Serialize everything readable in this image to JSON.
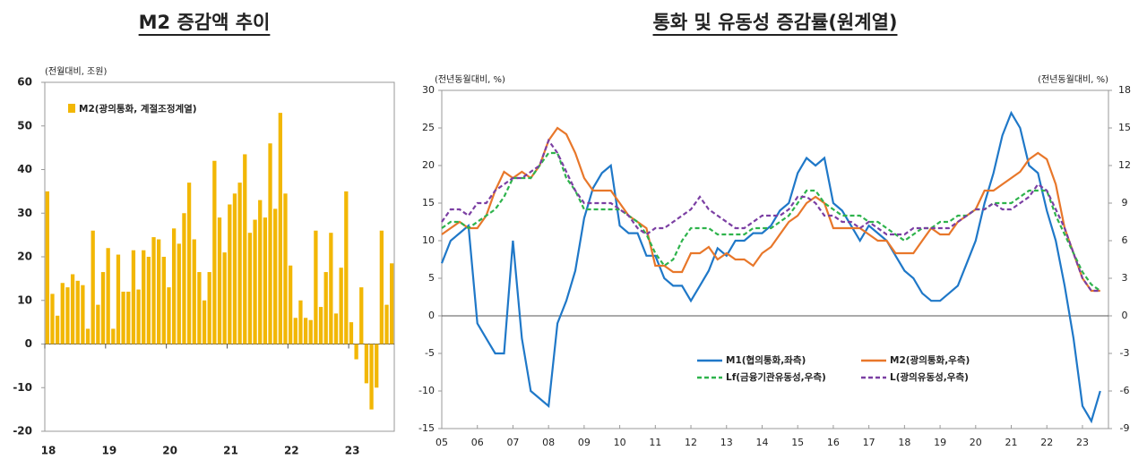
{
  "chart_data": [
    {
      "type": "bar",
      "title": "M2 증감액 추이",
      "unit_label": "(전월대비, 조원)",
      "categories": [
        "18",
        null,
        null,
        null,
        null,
        null,
        null,
        null,
        null,
        null,
        null,
        null,
        "19",
        null,
        null,
        null,
        null,
        null,
        null,
        null,
        null,
        null,
        null,
        null,
        "20",
        null,
        null,
        null,
        null,
        null,
        null,
        null,
        null,
        null,
        null,
        null,
        "21",
        null,
        null,
        null,
        null,
        null,
        null,
        null,
        null,
        null,
        null,
        null,
        "22",
        null,
        null,
        null,
        null,
        null,
        null,
        null,
        null,
        null,
        null,
        null,
        "23",
        null,
        null,
        null,
        null,
        null,
        null,
        null,
        null
      ],
      "series": [
        {
          "name": "M2(광의통화, 계절조정계열)",
          "color": "#f2b705",
          "values": [
            35,
            11.5,
            6.5,
            14,
            13,
            16,
            14.5,
            13.5,
            3.5,
            26,
            9,
            16.5,
            22,
            3.5,
            20.5,
            12,
            12,
            21.5,
            12.5,
            21.5,
            20,
            24.5,
            24,
            20,
            13,
            26.5,
            23,
            30,
            37,
            24,
            16.5,
            10,
            16.5,
            42,
            29,
            21,
            32,
            34.5,
            37,
            43.5,
            25.5,
            28.5,
            33,
            29,
            46,
            31,
            53,
            34.5,
            18,
            6,
            10,
            6,
            5.5,
            26,
            8.5,
            16.5,
            25.5,
            7,
            17.5,
            35,
            5,
            -3.5,
            13,
            -9,
            -15,
            -10,
            26,
            9,
            18.5
          ]
        }
      ],
      "ylim": [
        -20,
        60
      ],
      "yticks": [
        -20,
        -10,
        0,
        10,
        20,
        30,
        40,
        50,
        60
      ]
    },
    {
      "type": "line",
      "title": "통화 및 유동성 증감률(원계열)",
      "unit_label": "(전년동월대비, %)",
      "unit_label_right": "(전년동월대비, %)",
      "categories": [
        "05",
        null,
        null,
        null,
        "06",
        null,
        null,
        null,
        "07",
        null,
        null,
        null,
        "08",
        null,
        null,
        null,
        "09",
        null,
        null,
        null,
        "10",
        null,
        null,
        null,
        "11",
        null,
        null,
        null,
        "12",
        null,
        null,
        null,
        "13",
        null,
        null,
        null,
        "14",
        null,
        null,
        null,
        "15",
        null,
        null,
        null,
        "16",
        null,
        null,
        null,
        "17",
        null,
        null,
        null,
        "18",
        null,
        null,
        null,
        "19",
        null,
        null,
        null,
        "20",
        null,
        null,
        null,
        "21",
        null,
        null,
        null,
        "22",
        null,
        null,
        null,
        "23",
        null,
        null
      ],
      "series": [
        {
          "name": "M1(협의통화,좌측)",
          "color": "#1f78c8",
          "dash": false,
          "values": [
            7,
            10,
            11,
            12,
            -1,
            -3,
            -5,
            -5,
            10,
            -3,
            -10,
            -11,
            -12,
            -1,
            2,
            6,
            13,
            17,
            19,
            20,
            12,
            11,
            11,
            8,
            8,
            5,
            4,
            4,
            2,
            4,
            6,
            9,
            8,
            10,
            10,
            11,
            11,
            12,
            14,
            15,
            19,
            21,
            20,
            21,
            15,
            14,
            12,
            10,
            12,
            11,
            10,
            8,
            6,
            5,
            3,
            2,
            2,
            3,
            4,
            7,
            10,
            15,
            19,
            24,
            27,
            25,
            20,
            19,
            14,
            10,
            4,
            -3,
            -12,
            -14,
            -10
          ]
        },
        {
          "name": "M2(광의통화,우측)",
          "color": "#e8772a",
          "dash": false,
          "axis": "y2",
          "values": [
            6.5,
            7,
            7.5,
            7,
            7,
            8,
            10,
            11.5,
            11,
            11.5,
            11,
            12,
            14,
            15,
            14.5,
            13,
            11,
            10,
            10,
            10,
            9,
            8,
            7.5,
            7,
            4,
            4,
            3.5,
            3.5,
            5,
            5,
            5.5,
            4.5,
            5,
            4.5,
            4.5,
            4,
            5,
            5.5,
            6.5,
            7.5,
            8,
            9,
            9.5,
            9,
            7,
            7,
            7,
            7,
            6.5,
            6,
            6,
            5,
            5,
            5,
            6,
            7,
            6.5,
            6.5,
            7.5,
            8,
            8.5,
            10,
            10,
            10.5,
            11,
            11.5,
            12.5,
            13,
            12.5,
            10.5,
            7,
            5,
            3,
            2,
            2
          ]
        },
        {
          "name": "Lf(금융기관유동성,우측)",
          "color": "#2eb34c",
          "dash": true,
          "axis": "y2",
          "values": [
            7,
            7.5,
            7.5,
            7,
            7.5,
            8,
            8.5,
            9.5,
            11,
            11,
            11,
            12,
            13,
            13,
            11,
            10,
            8.5,
            8.5,
            8.5,
            8.5,
            8.5,
            8,
            7.5,
            6.5,
            5,
            4,
            4.5,
            6,
            7,
            7,
            7,
            6.5,
            6.5,
            6.5,
            6.5,
            7,
            7,
            7,
            7.5,
            8,
            9,
            10,
            10,
            9,
            8.5,
            8,
            8,
            8,
            7.5,
            7.5,
            7,
            6.5,
            6,
            6.5,
            7,
            7,
            7.5,
            7.5,
            8,
            8,
            8.5,
            8.5,
            9,
            9,
            9,
            9.5,
            10,
            10,
            10,
            8,
            6.5,
            5,
            3.5,
            2.5,
            2
          ]
        },
        {
          "name": "L(광의유동성,우측)",
          "color": "#7b3fa3",
          "dash": true,
          "axis": "y2",
          "values": [
            7.5,
            8.5,
            8.5,
            8,
            9,
            9,
            10,
            10.5,
            11,
            11,
            11.5,
            12,
            14,
            13,
            11.5,
            10,
            9,
            9,
            9,
            9,
            8.5,
            8,
            7,
            6.5,
            7,
            7,
            7.5,
            8,
            8.5,
            9.5,
            8.5,
            8,
            7.5,
            7,
            7,
            7.5,
            8,
            8,
            8,
            8.5,
            9.5,
            9.5,
            9,
            8,
            8,
            7.5,
            7.5,
            7,
            7.5,
            7,
            6.5,
            6.5,
            6.5,
            7,
            7,
            7,
            7,
            7,
            7.5,
            8,
            8.5,
            8.5,
            9,
            8.5,
            8.5,
            9,
            9.5,
            10.5,
            10,
            8.5,
            7,
            5,
            3,
            2,
            2
          ]
        }
      ],
      "ylim": [
        -15,
        30
      ],
      "yticks": [
        -15,
        -10,
        -5,
        0,
        5,
        10,
        15,
        20,
        25,
        30
      ],
      "y2lim": [
        -9,
        18
      ],
      "y2ticks": [
        -9,
        -6,
        -3,
        0,
        3,
        6,
        9,
        12,
        15,
        18
      ]
    }
  ]
}
